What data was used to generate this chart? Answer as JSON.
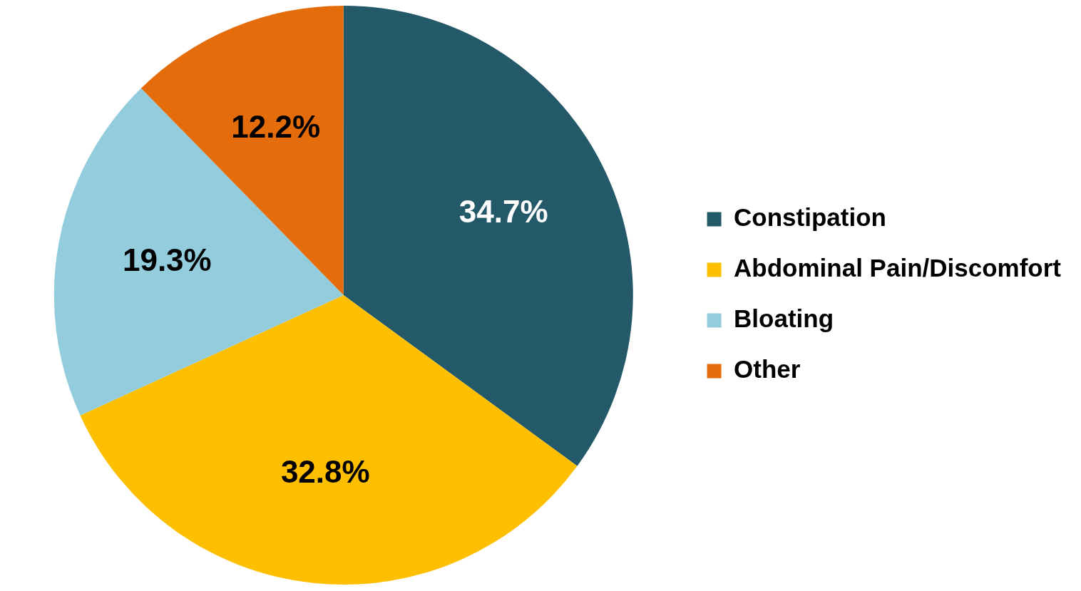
{
  "chart_data": {
    "type": "pie",
    "categories": [
      "Constipation",
      "Abdominal Pain/Discomfort",
      "Bloating",
      "Other"
    ],
    "values": [
      34.7,
      32.8,
      19.3,
      12.2
    ],
    "colors": [
      "#235968",
      "#fdbf00",
      "#93cddd",
      "#e46c0a"
    ],
    "value_labels": [
      "34.7%",
      "32.8%",
      "19.3%",
      "12.2%"
    ],
    "legend": "right"
  }
}
